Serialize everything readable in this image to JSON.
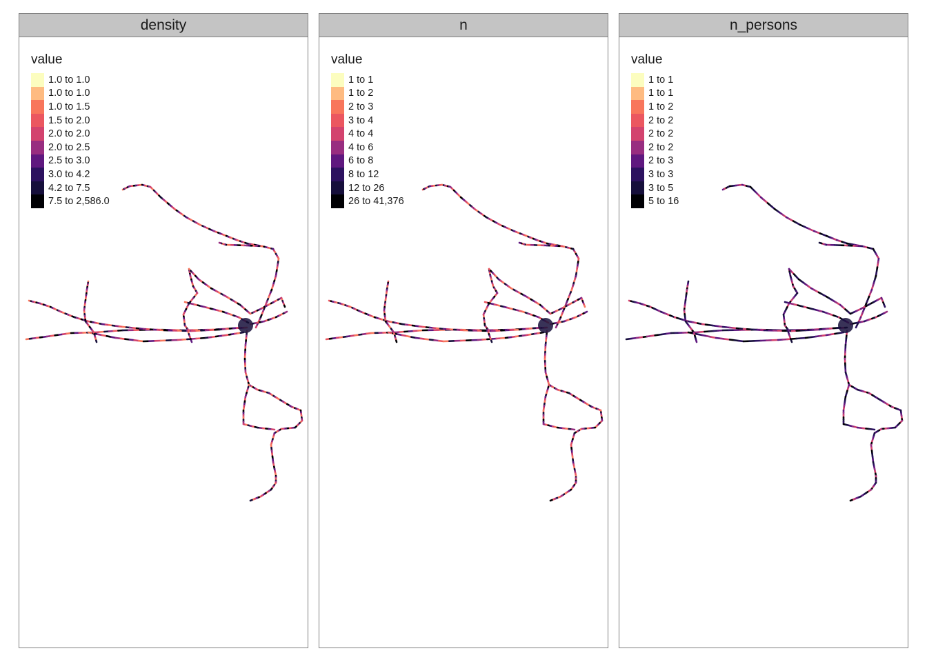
{
  "panels": [
    {
      "title": "density",
      "legend_title": "value",
      "legend": [
        "1.0 to 1.0",
        "1.0 to 1.0",
        "1.0 to 1.5",
        "1.5 to 2.0",
        "2.0 to 2.0",
        "2.0 to 2.5",
        "2.5 to 3.0",
        "3.0 to 4.2",
        "4.2 to 7.5",
        "7.5 to 2,586.0"
      ]
    },
    {
      "title": "n",
      "legend_title": "value",
      "legend": [
        "1 to 1",
        "1 to 2",
        "2 to 3",
        "3 to 4",
        "4 to 4",
        "4 to 6",
        "6 to 8",
        "8 to 12",
        "12 to 26",
        "26 to 41,376"
      ]
    },
    {
      "title": "n_persons",
      "legend_title": "value",
      "legend": [
        "1 to 1",
        "1 to 1",
        "1 to 2",
        "2 to 2",
        "2 to 2",
        "2 to 2",
        "2 to 3",
        "3 to 3",
        "3 to 5",
        "5 to 16"
      ]
    }
  ],
  "palette": [
    "#fcfdbf",
    "#febb81",
    "#f8765c",
    "#eb5760",
    "#d3436e",
    "#982d80",
    "#5f187f",
    "#2c115f",
    "#160f3b",
    "#000004"
  ]
}
